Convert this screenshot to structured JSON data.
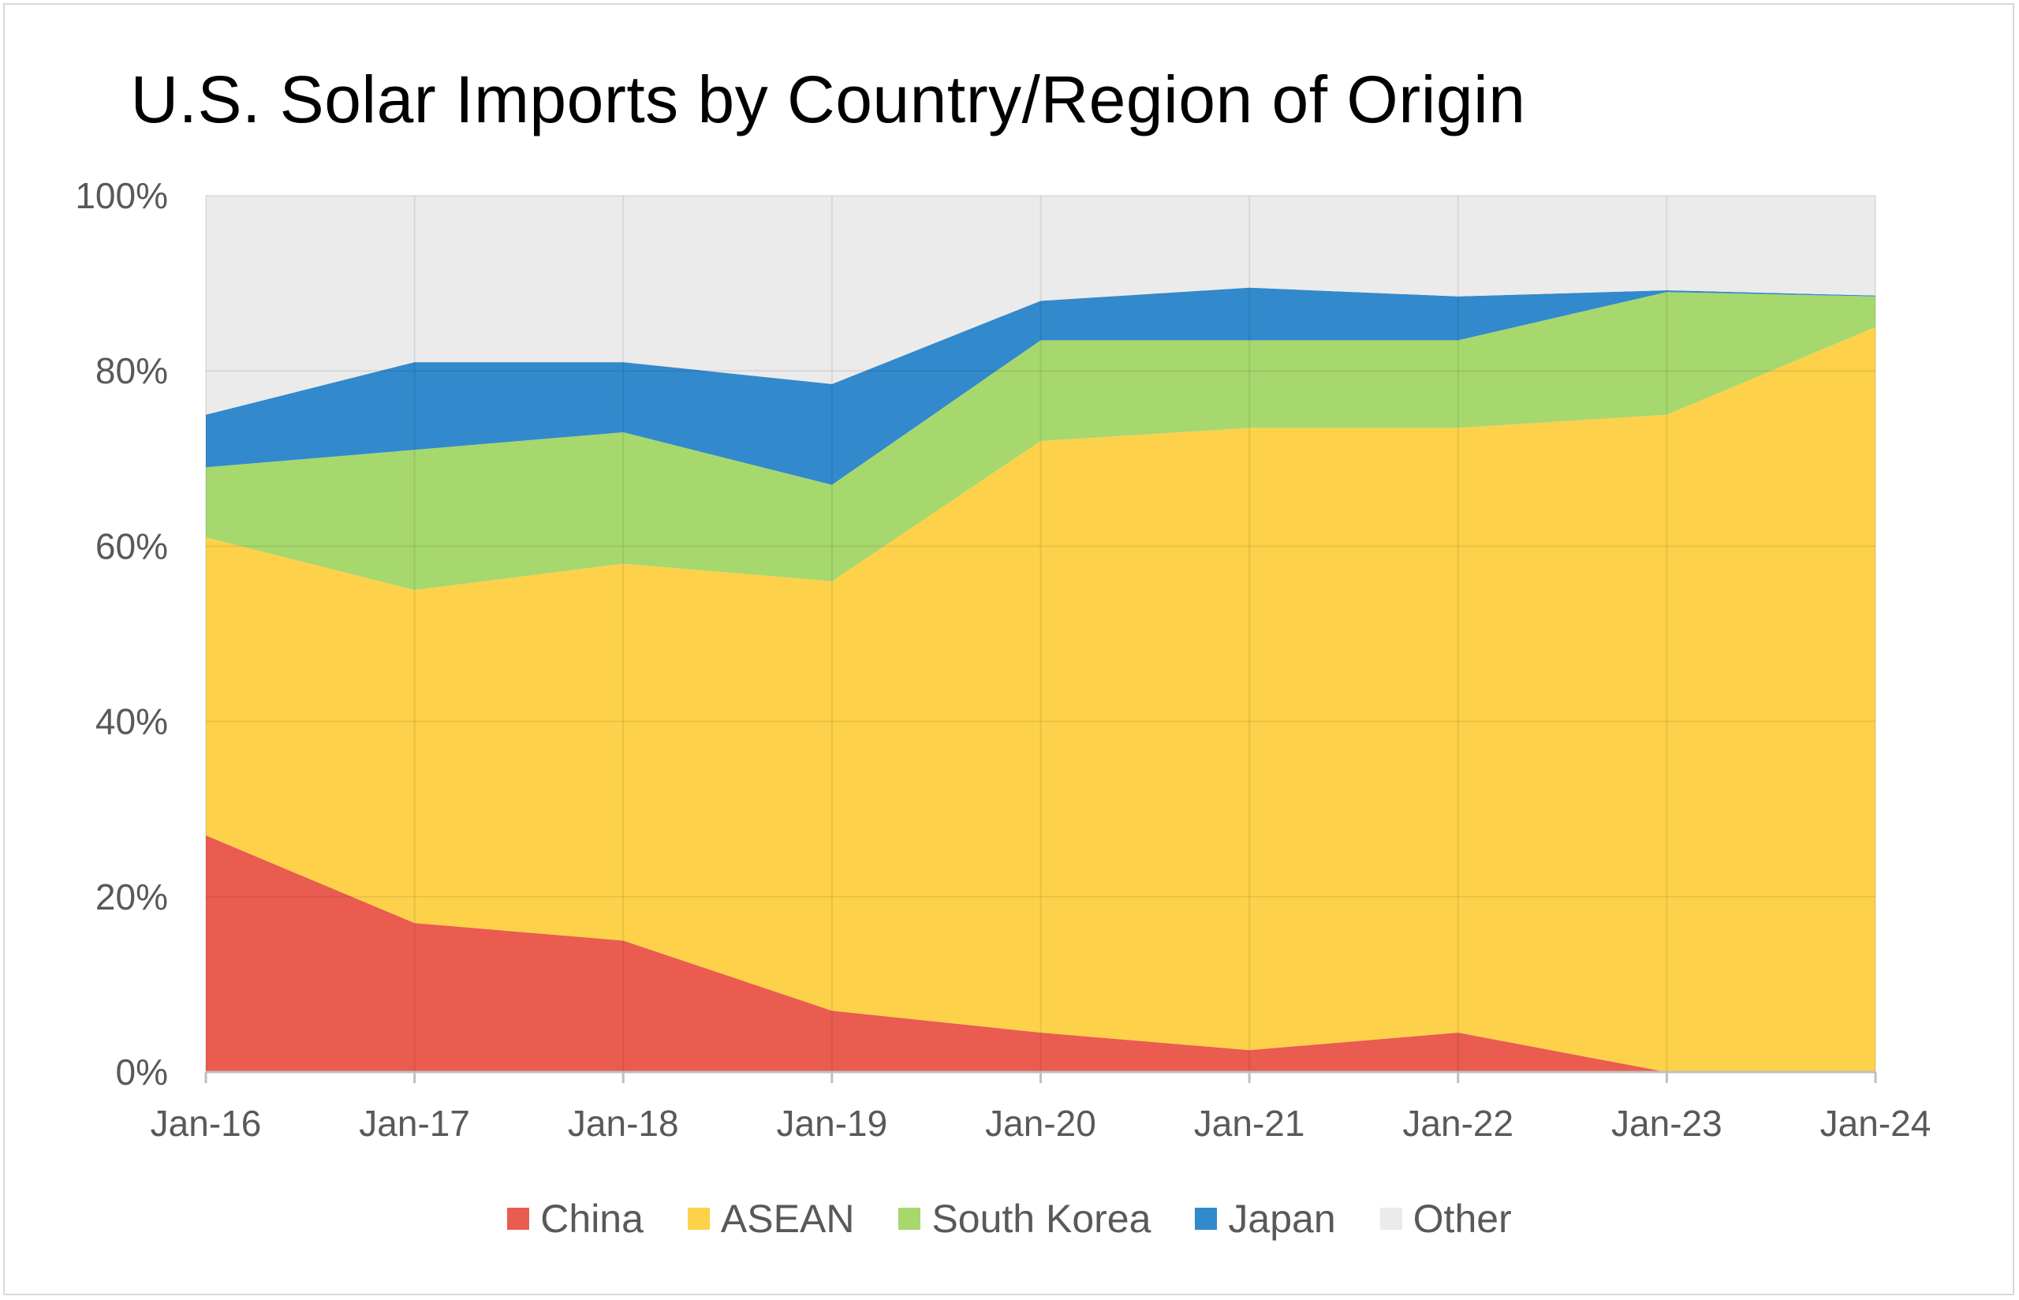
{
  "chart_data": {
    "type": "area",
    "stacked": true,
    "title": "U.S. Solar Imports by Country/Region of Origin",
    "xlabel": "",
    "ylabel": "",
    "categories": [
      "Jan-16",
      "Jan-17",
      "Jan-18",
      "Jan-19",
      "Jan-20",
      "Jan-21",
      "Jan-22",
      "Jan-23",
      "Jan-24"
    ],
    "y_ticks": [
      "0%",
      "20%",
      "40%",
      "60%",
      "80%",
      "100%"
    ],
    "ylim": [
      0,
      100
    ],
    "grid": true,
    "legend_position": "bottom",
    "series": [
      {
        "name": "China",
        "color": "#e95c4f",
        "values": [
          27,
          17,
          15,
          7,
          4.5,
          2.5,
          4.5,
          0,
          0
        ]
      },
      {
        "name": "ASEAN",
        "color": "#fdd14a",
        "values": [
          34,
          38,
          43,
          49,
          67.5,
          71,
          69,
          75,
          85
        ]
      },
      {
        "name": "South Korea",
        "color": "#a6d86e",
        "values": [
          8,
          16,
          15,
          11,
          11.5,
          10,
          10,
          14,
          3.5
        ]
      },
      {
        "name": "Japan",
        "color": "#3289cc",
        "values": [
          6,
          10,
          8,
          11.5,
          4.5,
          6,
          5,
          0.2,
          0.1
        ]
      },
      {
        "name": "Other",
        "color": "#ebebeb",
        "values": [
          25,
          19,
          19,
          21.5,
          12,
          10.5,
          11.5,
          10.8,
          11.4
        ]
      }
    ]
  }
}
